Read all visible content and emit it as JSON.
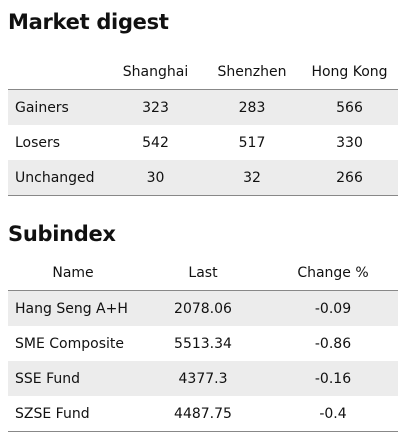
{
  "market_digest": {
    "title": "Market digest",
    "header": [
      "Shanghai",
      "Shenzhen",
      "Hong Kong"
    ],
    "rows": [
      [
        "Gainers",
        "323",
        "283",
        "566"
      ],
      [
        "Losers",
        "542",
        "517",
        "330"
      ],
      [
        "Unchanged",
        "30",
        "32",
        "266"
      ]
    ]
  },
  "subindex": {
    "title": "Subindex",
    "header": [
      "Name",
      "Last",
      "Change %"
    ],
    "rows": [
      [
        "Hang Seng A+H",
        "2078.06",
        "-0.09"
      ],
      [
        "SME Composite",
        "5513.34",
        "-0.86"
      ],
      [
        "SSE Fund",
        "4377.3",
        "-0.16"
      ],
      [
        "SZSE Fund",
        "4487.75",
        "-0.4"
      ]
    ]
  }
}
